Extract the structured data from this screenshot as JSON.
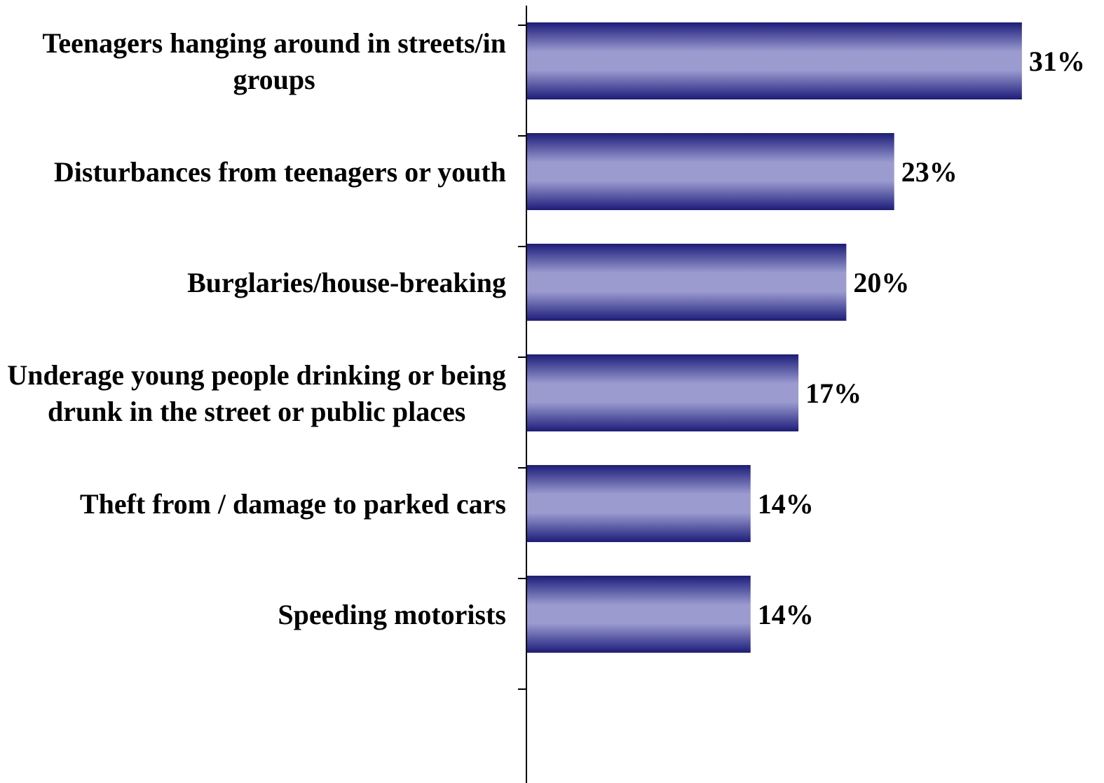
{
  "chart_data": {
    "type": "bar",
    "orientation": "horizontal",
    "categories": [
      "Teenagers hanging around in streets/in groups",
      "Disturbances from teenagers or youth",
      "Burglaries/house-breaking",
      "Underage young people drinking or being drunk in the street or public places",
      "Theft from / damage to parked cars",
      "Speeding motorists"
    ],
    "category_lines": [
      [
        "Teenagers hanging around in streets/in",
        "groups"
      ],
      [
        "Disturbances from teenagers or youth"
      ],
      [
        "Burglaries/house-breaking"
      ],
      [
        "Underage young people drinking or being",
        "drunk in the street or public places"
      ],
      [
        "Theft from / damage to parked cars"
      ],
      [
        "Speeding motorists"
      ]
    ],
    "values": [
      31,
      23,
      20,
      17,
      14,
      14
    ],
    "value_labels": [
      "31%",
      "23%",
      "20%",
      "17%",
      "14%",
      "14%"
    ],
    "bar_colors": {
      "edge": "#1c1c7a",
      "center": "#9b9bd0"
    },
    "grid": false,
    "legend": "none"
  }
}
